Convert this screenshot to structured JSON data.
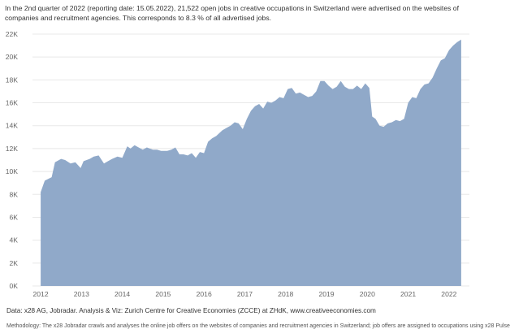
{
  "caption": "In the 2nd quarter of 2022 (reporting date: 15.05.2022), 21,522 open jobs in creative occupations in Switzerland were advertised on the websites of companies and recruitment agencies. This corresponds to 8.3 % of all advertised jobs.",
  "source": "Data: x28 AG, Jobradar. Analysis & Viz: Zurich Centre for Creative Economies (ZCCE) at ZHdK, www.creativeeconomies.com",
  "footnote": "Methodology: The x28 Jobradar crawls and analyses the online job offers on the websites of companies and recruitment agencies in Switzerland; job offers are assigned to occupations using x28 Pulse",
  "colors": {
    "area": "#90a9c9",
    "grid": "#e8e8e8",
    "tick": "#666666"
  },
  "chart_data": {
    "type": "area",
    "title": "",
    "xlabel": "",
    "ylabel": "",
    "ylim": [
      0,
      22000
    ],
    "xlim": [
      2011.8,
      2022.5
    ],
    "yticks": [
      0,
      2000,
      4000,
      6000,
      8000,
      10000,
      12000,
      14000,
      16000,
      18000,
      20000,
      22000
    ],
    "ytick_labels": [
      "0K",
      "2K",
      "4K",
      "6K",
      "8K",
      "10K",
      "12K",
      "14K",
      "16K",
      "18K",
      "20K",
      "22K"
    ],
    "xticks": [
      2012,
      2013,
      2014,
      2015,
      2016,
      2017,
      2018,
      2019,
      2020,
      2021,
      2022
    ],
    "xtick_labels": [
      "2012",
      "2013",
      "2014",
      "2015",
      "2016",
      "2017",
      "2018",
      "2019",
      "2020",
      "2021",
      "2022"
    ],
    "grid": true,
    "series": [
      {
        "x": [
          2012.0,
          2012.1,
          2012.27,
          2012.35,
          2012.5,
          2012.6,
          2012.73,
          2012.85,
          2012.98,
          2013.05,
          2013.2,
          2013.3,
          2013.42,
          2013.55,
          2013.65,
          2013.75,
          2013.88,
          2014.0,
          2014.12,
          2014.2,
          2014.3,
          2014.4,
          2014.5,
          2014.6,
          2014.75,
          2014.85,
          2014.95,
          2015.1,
          2015.2,
          2015.3,
          2015.4,
          2015.5,
          2015.6,
          2015.7,
          2015.8,
          2015.9,
          2016.0,
          2016.1,
          2016.2,
          2016.3,
          2016.45,
          2016.55,
          2016.65,
          2016.75,
          2016.85,
          2016.95,
          2017.05,
          2017.15,
          2017.25,
          2017.35,
          2017.45,
          2017.55,
          2017.65,
          2017.75,
          2017.85,
          2017.95,
          2018.05,
          2018.15,
          2018.25,
          2018.35,
          2018.45,
          2018.55,
          2018.65,
          2018.75,
          2018.85,
          2018.95,
          2019.05,
          2019.15,
          2019.25,
          2019.35,
          2019.45,
          2019.55,
          2019.65,
          2019.75,
          2019.85,
          2019.95,
          2020.05,
          2020.12,
          2020.2,
          2020.3,
          2020.4,
          2020.5,
          2020.6,
          2020.7,
          2020.8,
          2020.9,
          2021.0,
          2021.1,
          2021.2,
          2021.3,
          2021.4,
          2021.5,
          2021.6,
          2021.7,
          2021.8,
          2021.9,
          2022.0,
          2022.1,
          2022.2,
          2022.3
        ],
        "y": [
          8200,
          9200,
          9500,
          10800,
          11100,
          11000,
          10700,
          10800,
          10300,
          10900,
          11100,
          11300,
          11400,
          10700,
          10900,
          11100,
          11300,
          11200,
          12200,
          12000,
          12300,
          12100,
          11900,
          12100,
          11900,
          11900,
          11800,
          11800,
          11900,
          12100,
          11500,
          11500,
          11400,
          11600,
          11200,
          11700,
          11600,
          12600,
          12900,
          13100,
          13600,
          13800,
          14000,
          14300,
          14200,
          13700,
          14600,
          15300,
          15700,
          15900,
          15500,
          16100,
          16000,
          16200,
          16500,
          16400,
          17200,
          17300,
          16800,
          16900,
          16700,
          16500,
          16600,
          17000,
          17900,
          17900,
          17500,
          17200,
          17400,
          17900,
          17400,
          17200,
          17200,
          17500,
          17200,
          17700,
          17300,
          14800,
          14600,
          14000,
          13900,
          14200,
          14300,
          14500,
          14400,
          14600,
          16000,
          16500,
          16400,
          17200,
          17600,
          17700,
          18200,
          19000,
          19700,
          19900,
          20600,
          21000,
          21300,
          21522
        ]
      }
    ]
  }
}
